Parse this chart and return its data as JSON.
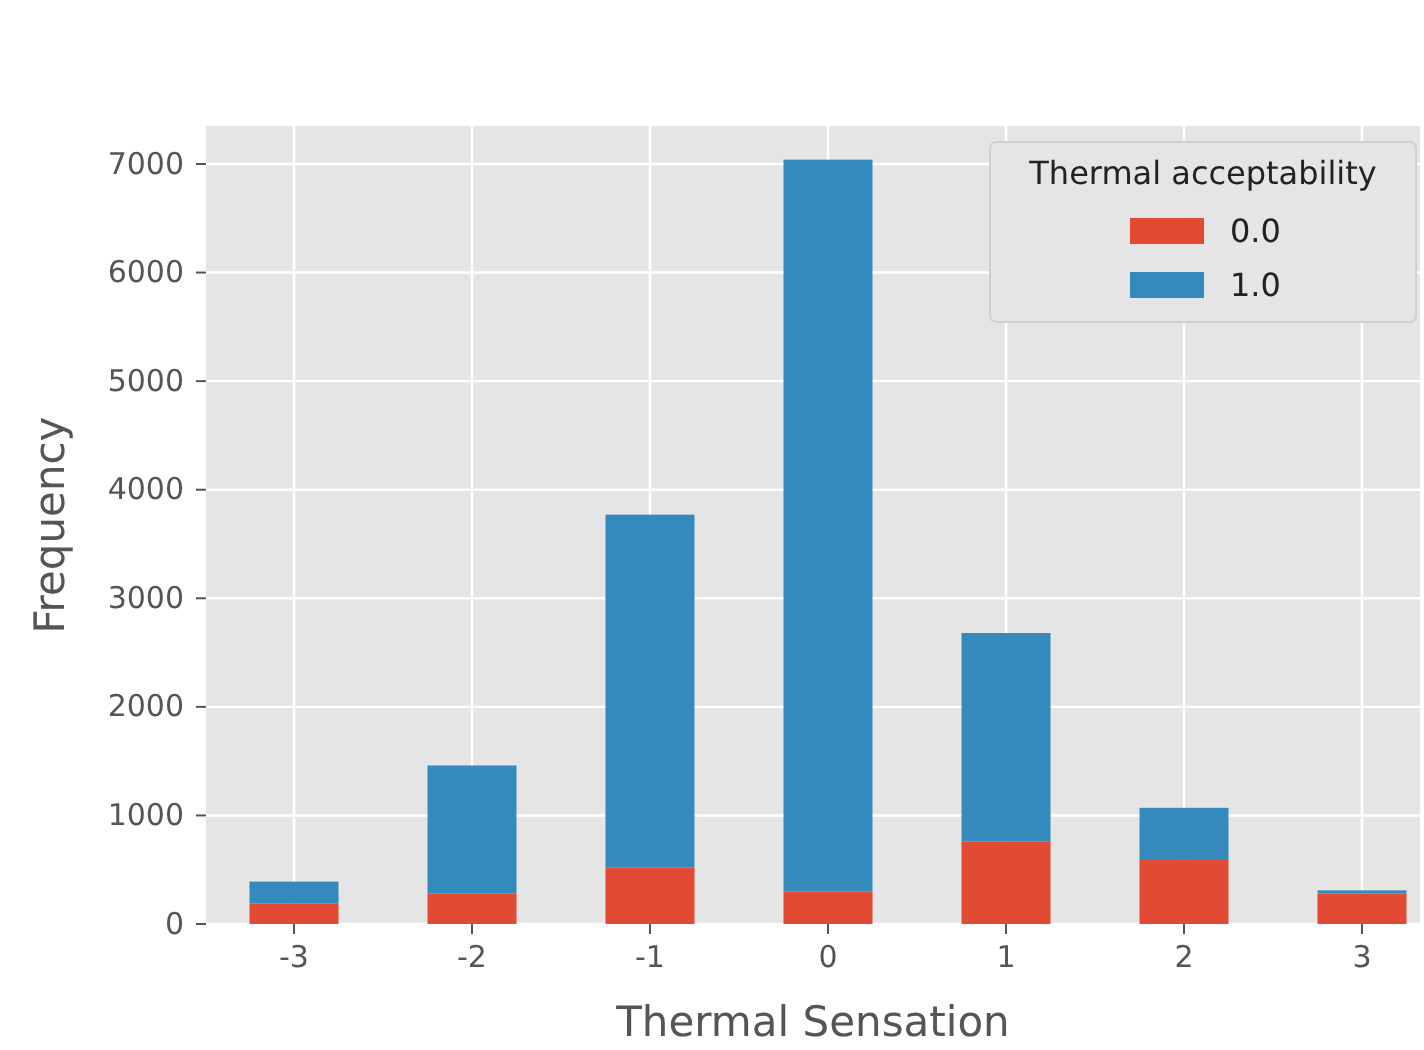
{
  "chart_data": {
    "type": "bar",
    "stacked": true,
    "xlabel": "Thermal Sensation",
    "ylabel": "Frequency",
    "legend_title": "Thermal acceptability",
    "legend": "top right",
    "grid": true,
    "categories": [
      "-3",
      "-2",
      "-1",
      "0",
      "1",
      "2",
      "3"
    ],
    "ylim": [
      0,
      7350
    ],
    "yticks": [
      0,
      1000,
      2000,
      3000,
      4000,
      5000,
      6000,
      7000
    ],
    "series": [
      {
        "name": "0.0",
        "color": "#e24a33",
        "values": [
          190,
          280,
          520,
          300,
          760,
          590,
          280
        ]
      },
      {
        "name": "1.0",
        "color": "#348abd",
        "values": [
          200,
          1180,
          3250,
          6740,
          1920,
          480,
          30
        ]
      }
    ]
  }
}
